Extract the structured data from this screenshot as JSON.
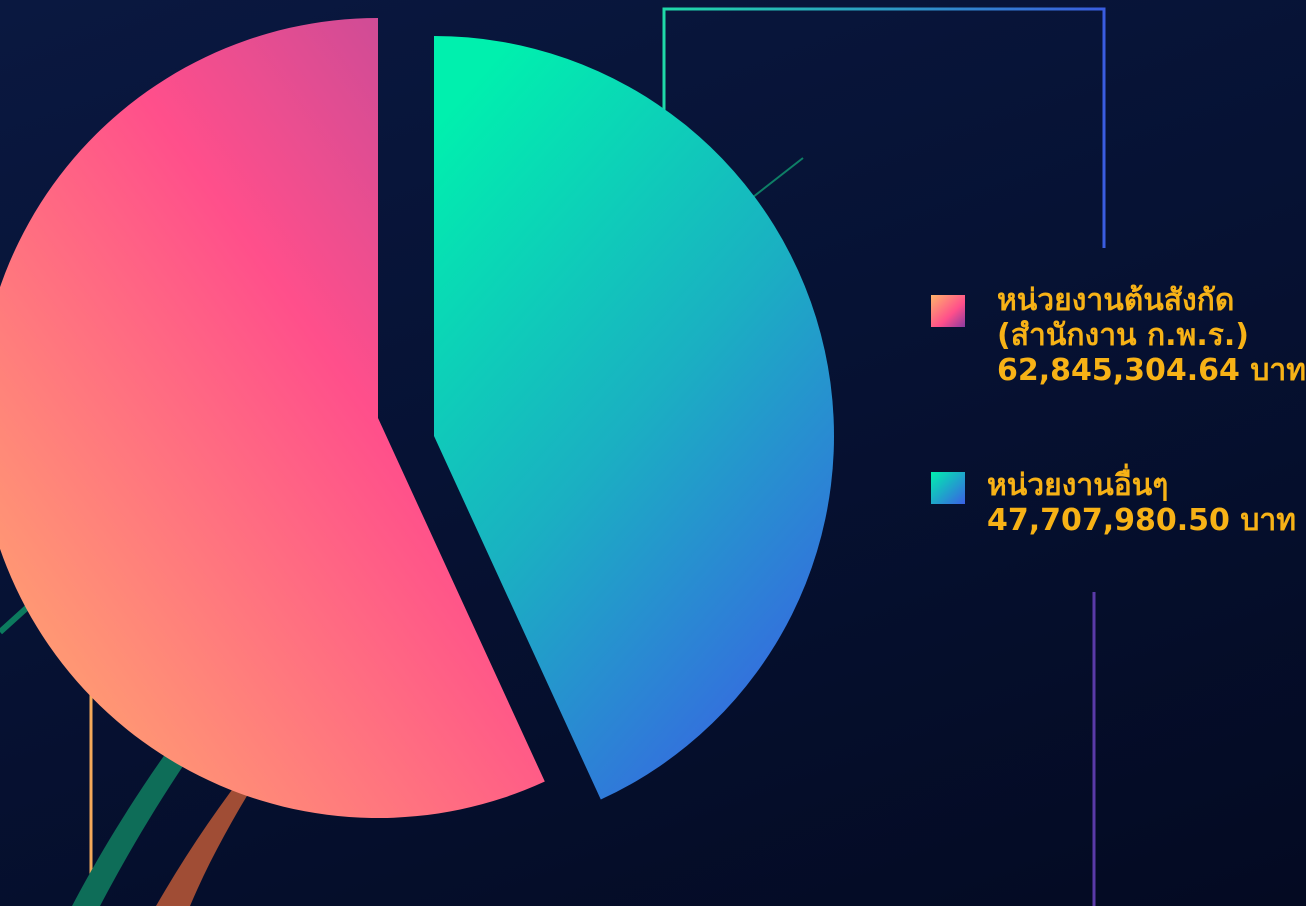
{
  "chart_data": {
    "type": "pie",
    "title": "",
    "slices": [
      {
        "label": "หน่วยงานต้นสังกัด (สำนักงาน ก.พ.ร.)",
        "label_lines": [
          "หน่วยงานต้นสังกัด",
          "(สำนักงาน ก.พ.ร.)"
        ],
        "value": 62845304.64,
        "value_text": "62,845,304.64 บาท",
        "gradient": [
          "#ffb46a",
          "#ff4f8b",
          "#b44a9c"
        ]
      },
      {
        "label": "หน่วยงานอื่นๆ",
        "label_lines": [
          "หน่วยงานอื่นๆ"
        ],
        "value": 47707980.5,
        "value_text": "47,707,980.50 บาท",
        "gradient": [
          "#00f0ae",
          "#1ab0c2",
          "#3a60e4"
        ]
      }
    ],
    "legend_position": "right",
    "value_color": "#f7b216"
  },
  "legend": {
    "item1": {
      "line1": "หน่วยงานต้นสังกัด",
      "line2": "(สำนักงาน ก.พ.ร.)",
      "value": "62,845,304.64 บาท"
    },
    "item2": {
      "line1": "หน่วยงานอื่นๆ",
      "value": "47,707,980.50 บาท"
    }
  }
}
